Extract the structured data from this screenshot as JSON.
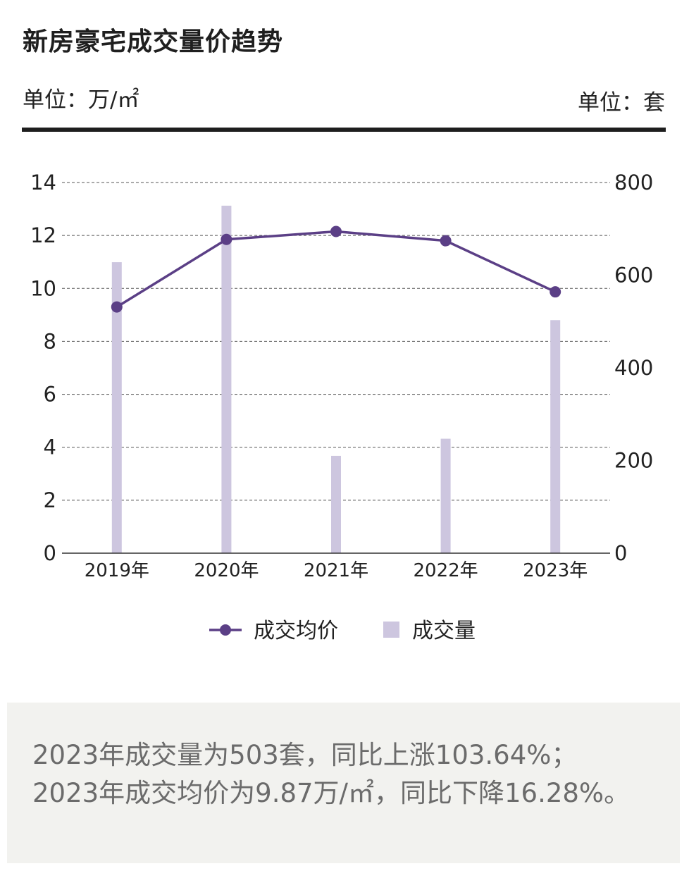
{
  "header": {
    "title": "新房豪宅成交量价趋势",
    "unit_left": "单位：万/㎡",
    "unit_right": "单位：套"
  },
  "colors": {
    "line": "#5b3f86",
    "bar": "#cdc6df",
    "grid": "#555555",
    "rule": "#1e1e1e"
  },
  "chart_data": {
    "type": "bar",
    "categories": [
      "2019年",
      "2020年",
      "2021年",
      "2022年",
      "2023年"
    ],
    "series": [
      {
        "name": "成交均价",
        "type": "line",
        "axis": "left",
        "values": [
          9.3,
          11.85,
          12.15,
          11.8,
          9.87
        ]
      },
      {
        "name": "成交量",
        "type": "bar",
        "axis": "right",
        "values": [
          628,
          750,
          210,
          247,
          503
        ]
      }
    ],
    "y_left": {
      "range": [
        0,
        14
      ],
      "ticks": [
        "0",
        "2",
        "4",
        "6",
        "8",
        "10",
        "12",
        "14"
      ]
    },
    "y_right": {
      "range": [
        0,
        800
      ],
      "ticks": [
        "0",
        "200",
        "400",
        "600",
        "800"
      ]
    },
    "grid": "dashed-horizontal",
    "legend": {
      "placement": "bottom-center",
      "items": [
        "成交均价",
        "成交量"
      ]
    }
  },
  "note": {
    "line1": "2023年成交量为503套，同比上涨103.64%；",
    "line2": "2023年成交均价为9.87万/㎡，同比下降16.28%。"
  }
}
